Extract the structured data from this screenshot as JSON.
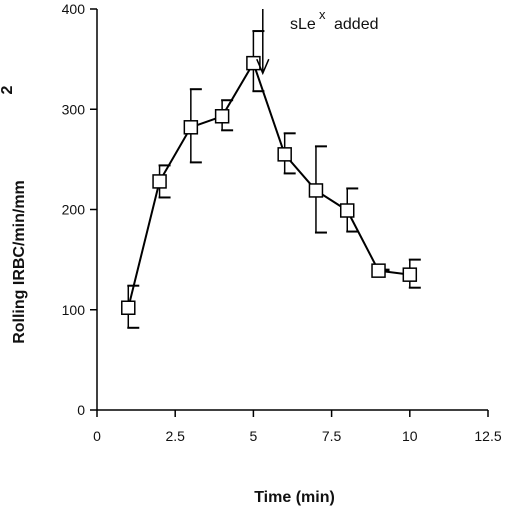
{
  "chart_data": {
    "type": "line",
    "title": "",
    "xlabel": "Time (min)",
    "ylabel_main": "Rolling IRBC/min/mm",
    "ylabel_superscript": "2",
    "xlim": [
      0,
      12.5
    ],
    "ylim": [
      0,
      400
    ],
    "x_ticks": [
      0,
      2.5,
      5,
      7.5,
      10,
      12.5
    ],
    "x_tick_labels": [
      "0",
      "2.5",
      "5",
      "7.5",
      "10",
      "12.5"
    ],
    "y_ticks": [
      0,
      100,
      200,
      300,
      400
    ],
    "y_tick_labels": [
      "0",
      "100",
      "200",
      "300",
      "400"
    ],
    "grid": false,
    "series": [
      {
        "x": [
          1,
          2,
          3,
          4,
          5,
          6,
          7,
          8,
          9,
          10
        ],
        "y": [
          102,
          228,
          282,
          293,
          346,
          255,
          219,
          199,
          139,
          135
        ],
        "err_upper": [
          124,
          244,
          320,
          309,
          378,
          276,
          263,
          221,
          140,
          150
        ],
        "err_lower": [
          82,
          212,
          247,
          279,
          318,
          236,
          177,
          178,
          139,
          122
        ]
      }
    ],
    "annotation": {
      "text_main": "sLe",
      "text_superscript": "x",
      "text_suffix": "added",
      "arrow_x": 5.3,
      "arrow_y_top": 400,
      "arrow_y_bottom": 336
    },
    "marker": "open-square",
    "colors": {
      "line": "#000000",
      "marker_fill": "#ffffff"
    }
  }
}
